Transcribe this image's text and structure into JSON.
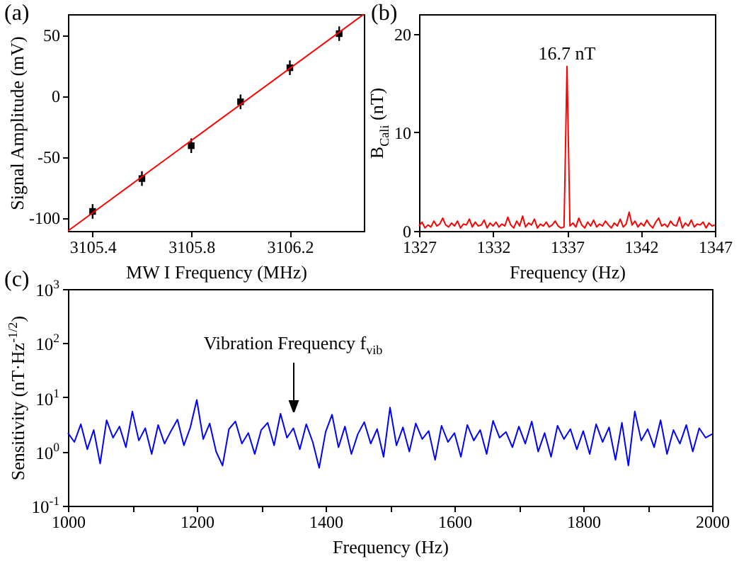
{
  "chart_data": [
    {
      "type": "scatter",
      "title": "(a)",
      "xlabel": "MW I Frequency (MHz)",
      "ylabel": "Signal Amplitude (mV)",
      "series": [
        {
          "type": "scatter",
          "color": "#000000",
          "marker": "square",
          "x": [
            3105.4,
            3105.6,
            3105.8,
            3106.0,
            3106.2,
            3106.4
          ],
          "values": [
            -95,
            -68,
            -41,
            -5,
            23,
            51
          ],
          "errors": [
            6,
            6,
            6,
            6,
            6,
            6
          ]
        },
        {
          "type": "line",
          "color": "#ff0000",
          "x": [
            3105.3,
            3106.5
          ],
          "values": [
            -111,
            67
          ]
        }
      ],
      "xlim": [
        3105.3,
        3106.5
      ],
      "xticks": [
        3105.4,
        3105.8,
        3106.2
      ],
      "ylim": [
        -111,
        67
      ],
      "yticks": [
        -100,
        -50,
        0,
        50
      ]
    },
    {
      "type": "line",
      "title": "(b)",
      "xlabel": "Frequency (Hz)",
      "ylabel": "B$_{Cali}$ (nT)",
      "x": [
        1327,
        1327.2,
        1327.4,
        1327.6,
        1327.8,
        1328,
        1328.2,
        1328.4,
        1328.6,
        1328.8,
        1329,
        1329.2,
        1329.4,
        1329.6,
        1329.8,
        1330,
        1330.2,
        1330.4,
        1330.6,
        1330.8,
        1331,
        1331.2,
        1331.4,
        1331.6,
        1331.8,
        1332,
        1332.2,
        1332.4,
        1332.6,
        1332.8,
        1333,
        1333.2,
        1333.4,
        1333.6,
        1333.8,
        1334,
        1334.2,
        1334.4,
        1334.6,
        1334.8,
        1335,
        1335.2,
        1335.4,
        1335.6,
        1335.8,
        1336,
        1336.2,
        1336.4,
        1336.6,
        1336.8,
        1337,
        1337.2,
        1337.4,
        1337.6,
        1337.8,
        1338,
        1338.2,
        1338.4,
        1338.6,
        1338.8,
        1339,
        1339.2,
        1339.4,
        1339.6,
        1339.8,
        1340,
        1340.2,
        1340.4,
        1340.6,
        1340.8,
        1341,
        1341.2,
        1341.4,
        1341.6,
        1341.8,
        1342,
        1342.2,
        1342.4,
        1342.6,
        1342.8,
        1343,
        1343.2,
        1343.4,
        1343.6,
        1343.8,
        1344,
        1344.2,
        1344.4,
        1344.6,
        1344.8,
        1345,
        1345.2,
        1345.4,
        1345.6,
        1345.8,
        1346,
        1346.2,
        1346.4,
        1346.6,
        1346.8,
        1347
      ],
      "series": [
        {
          "color": "#ff0000",
          "values": [
            0.5,
            0.9,
            0.3,
            0.6,
            0.4,
            1.0,
            0.5,
            0.7,
            1.3,
            0.6,
            0.4,
            0.8,
            0.5,
            1.0,
            0.3,
            0.7,
            0.6,
            1.2,
            0.4,
            0.9,
            0.5,
            0.6,
            1.1,
            0.3,
            0.8,
            0.5,
            0.9,
            0.4,
            0.7,
            0.5,
            1.4,
            0.6,
            0.3,
            1.0,
            0.5,
            1.5,
            0.4,
            0.8,
            0.6,
            1.2,
            0.3,
            0.7,
            0.5,
            0.9,
            0.4,
            0.6,
            1.0,
            0.5,
            0.3,
            0.4,
            16.7,
            0.5,
            0.8,
            0.4,
            1.3,
            0.6,
            0.3,
            0.9,
            0.5,
            1.1,
            0.4,
            0.7,
            0.5,
            1.0,
            0.6,
            0.3,
            0.8,
            0.5,
            1.2,
            0.4,
            0.7,
            1.9,
            0.6,
            1.0,
            0.4,
            0.8,
            0.5,
            1.1,
            0.6,
            0.3,
            0.9,
            1.3,
            0.5,
            0.7,
            0.4,
            1.0,
            0.6,
            0.5,
            1.4,
            0.3,
            0.8,
            0.5,
            1.1,
            0.4,
            0.7,
            0.6,
            0.9,
            0.3,
            0.8,
            0.5,
            0.6
          ]
        }
      ],
      "annotations": [
        {
          "text": "16.7 nT",
          "x": 1337,
          "y": 16.7
        }
      ],
      "xlim": [
        1327,
        1347
      ],
      "xticks": [
        1327,
        1332,
        1337,
        1342,
        1347
      ],
      "ylim": [
        0,
        22
      ],
      "yticks": [
        0,
        10,
        20
      ]
    },
    {
      "type": "line",
      "title": "(c)",
      "xlabel": "Frequency (Hz)",
      "ylabel": "Sensitivity (nT·Hz$^{-1/2}$)",
      "log": "y",
      "x": [
        1000,
        1010,
        1020,
        1030,
        1040,
        1050,
        1060,
        1070,
        1080,
        1090,
        1100,
        1110,
        1120,
        1130,
        1140,
        1150,
        1160,
        1170,
        1180,
        1190,
        1200,
        1210,
        1220,
        1230,
        1240,
        1250,
        1260,
        1270,
        1280,
        1290,
        1300,
        1310,
        1320,
        1330,
        1340,
        1350,
        1360,
        1370,
        1380,
        1390,
        1400,
        1410,
        1420,
        1430,
        1440,
        1450,
        1460,
        1470,
        1480,
        1490,
        1500,
        1510,
        1520,
        1530,
        1540,
        1550,
        1560,
        1570,
        1580,
        1590,
        1600,
        1610,
        1620,
        1630,
        1640,
        1650,
        1660,
        1670,
        1680,
        1690,
        1700,
        1710,
        1720,
        1730,
        1740,
        1750,
        1760,
        1770,
        1780,
        1790,
        1800,
        1810,
        1820,
        1830,
        1840,
        1850,
        1860,
        1870,
        1880,
        1890,
        1900,
        1910,
        1920,
        1930,
        1940,
        1950,
        1960,
        1970,
        1980,
        1990,
        2000
      ],
      "series": [
        {
          "color": "#0000ff",
          "values": [
            2.2,
            1.5,
            3.2,
            1.1,
            2.5,
            0.6,
            3.8,
            1.8,
            2.9,
            1.2,
            5.5,
            1.6,
            2.7,
            0.9,
            3.1,
            1.4,
            2.4,
            3.9,
            1.3,
            2.8,
            9.0,
            1.7,
            3.3,
            1.0,
            0.55,
            2.6,
            3.6,
            1.4,
            2.2,
            0.9,
            2.5,
            3.4,
            1.3,
            5.0,
            1.8,
            2.7,
            1.1,
            3.2,
            1.5,
            0.5,
            2.3,
            4.8,
            1.2,
            2.9,
            0.9,
            2.1,
            3.5,
            1.4,
            2.6,
            0.8,
            6.5,
            1.3,
            2.8,
            1.0,
            3.3,
            1.7,
            2.4,
            0.7,
            3.0,
            1.5,
            2.2,
            0.8,
            3.1,
            1.6,
            2.5,
            0.9,
            3.7,
            1.8,
            2.3,
            1.2,
            2.9,
            1.4,
            3.6,
            1.0,
            2.2,
            0.8,
            3.0,
            1.7,
            2.6,
            1.1,
            2.4,
            0.9,
            3.2,
            1.5,
            2.8,
            0.7,
            3.4,
            0.55,
            5.5,
            1.6,
            2.6,
            1.2,
            3.8,
            0.9,
            2.5,
            1.4,
            3.1,
            1.0,
            2.7,
            1.8,
            2.1
          ]
        }
      ],
      "annotations": [
        "Vibration Frequency f$_{vib}$"
      ],
      "xlim": [
        1000,
        2000
      ],
      "xticks": [
        1000,
        {
          "value": 1100,
          "label": null
        },
        1200,
        {
          "value": 1300,
          "label": null
        },
        1400,
        {
          "value": 1500,
          "label": null
        },
        1600,
        {
          "value": 1700,
          "label": null
        },
        1800,
        {
          "value": 1900,
          "label": null
        },
        2000
      ],
      "ylim": [
        0.1,
        1000
      ],
      "yticks": [
        {
          "value": 0.1,
          "label": "10$^{-1}$"
        },
        {
          "value": 1,
          "label": "10$^{0}$"
        },
        {
          "value": 10,
          "label": "10$^{1}$"
        },
        {
          "value": 100,
          "label": "10$^{2}$"
        },
        {
          "value": 1000,
          "label": "10$^{3}$"
        }
      ]
    }
  ]
}
